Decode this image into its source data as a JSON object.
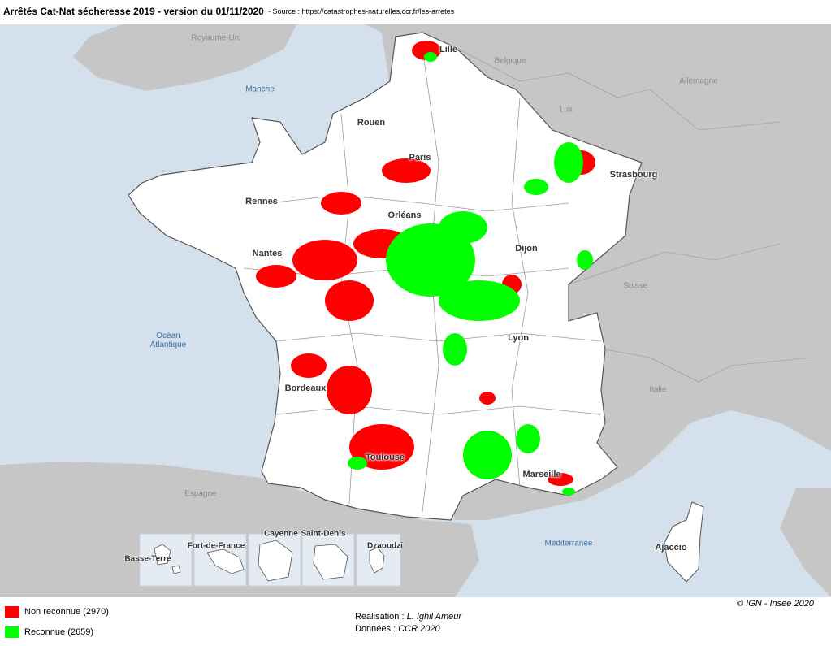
{
  "header": {
    "title": "Arrêtés Cat-Nat sécheresse 2019 - version du 01/11/2020",
    "source": "- Source : https://catastrophes-naturelles.ccr.fr/les-arretes"
  },
  "map": {
    "countries": [
      "Royaume-Uni",
      "Belgique",
      "Allemagne",
      "Lux",
      "Suisse",
      "Italie",
      "Espagne"
    ],
    "seas": [
      "Manche",
      "Océan Atlantique",
      "Méditerranée"
    ],
    "cities": [
      "Lille",
      "Rouen",
      "Paris",
      "Strasbourg",
      "Rennes",
      "Orléans",
      "Nantes",
      "Dijon",
      "Lyon",
      "Bordeaux",
      "Toulouse",
      "Marseille",
      "Ajaccio"
    ],
    "insets": [
      "Basse-Terre",
      "Fort-de-France",
      "Cayenne",
      "Saint-Denis",
      "Dzaoudzi"
    ]
  },
  "legend": [
    {
      "label": "Non reconnue (2970)",
      "color": "#ff0000"
    },
    {
      "label": "Reconnue (2659)",
      "color": "#00ff00"
    }
  ],
  "credits": {
    "realisation_label": "Réalisation :",
    "realisation": "L. Ighil Ameur",
    "donnees_label": "Données :",
    "donnees": "CCR 2020",
    "copyright": "© IGN - Insee 2020"
  }
}
